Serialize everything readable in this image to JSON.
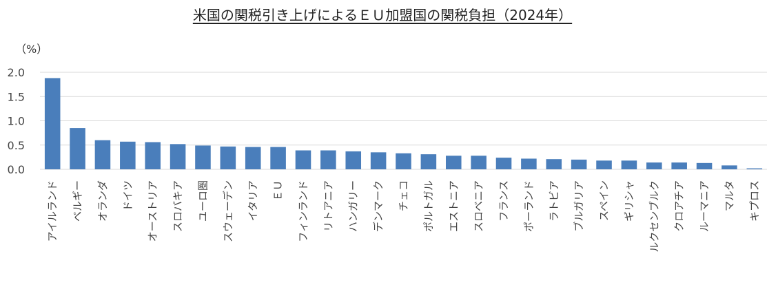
{
  "chart_data": {
    "type": "bar",
    "title": "米国の関税引き上げによるＥＵ加盟国の関税負担（2024年）",
    "ylabel": "（%）",
    "xlabel": "",
    "ylim": [
      0,
      2.0
    ],
    "yticks": [
      "0.0",
      "0.5",
      "1.0",
      "1.5",
      "2.0"
    ],
    "grid": true,
    "bar_color": "#4a7ebb",
    "categories": [
      "アイルランド",
      "ベルギー",
      "オランダ",
      "ドイツ",
      "オーストリア",
      "スロバキア",
      "ユーロ圏",
      "スウェーデン",
      "イタリア",
      "ＥＵ",
      "フィンランド",
      "リトアニア",
      "ハンガリー",
      "デンマーク",
      "チェコ",
      "ポルトガル",
      "エストニア",
      "スロベニア",
      "フランス",
      "ポーランド",
      "ラトビア",
      "ブルガリア",
      "スペイン",
      "ギリシャ",
      "ルクセンブルク",
      "クロアチア",
      "ルーマニア",
      "マルタ",
      "キプロス"
    ],
    "values": [
      1.88,
      0.85,
      0.6,
      0.57,
      0.56,
      0.52,
      0.49,
      0.47,
      0.46,
      0.46,
      0.39,
      0.39,
      0.37,
      0.35,
      0.33,
      0.31,
      0.28,
      0.28,
      0.24,
      0.22,
      0.21,
      0.2,
      0.18,
      0.18,
      0.14,
      0.14,
      0.13,
      0.08,
      0.02
    ]
  }
}
